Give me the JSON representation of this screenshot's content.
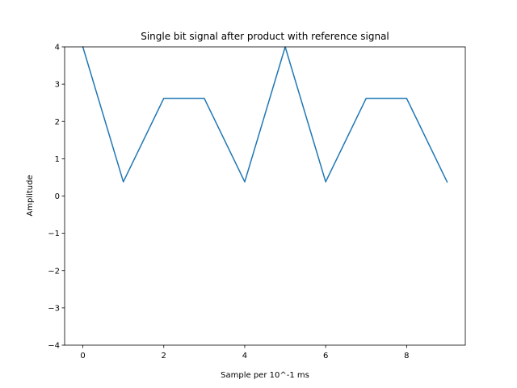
{
  "chart_data": {
    "type": "line",
    "title": "Single bit signal after product with reference signal",
    "xlabel": "Sample per 10^-1 ms",
    "ylabel": "Amplitude",
    "xlim": [
      -0.45,
      9.45
    ],
    "ylim": [
      -4,
      4
    ],
    "x_ticks": [
      0,
      2,
      4,
      6,
      8
    ],
    "x_tick_labels": [
      "0",
      "2",
      "4",
      "6",
      "8"
    ],
    "y_ticks": [
      -4,
      -3,
      -2,
      -1,
      0,
      1,
      2,
      3,
      4
    ],
    "y_tick_labels": [
      "−4",
      "−3",
      "−2",
      "−1",
      "0",
      "1",
      "2",
      "3",
      "4"
    ],
    "grid": false,
    "series": [
      {
        "color": "#1f77b4",
        "x": [
          0,
          1,
          2,
          3,
          4,
          5,
          6,
          7,
          8,
          9
        ],
        "y": [
          4.0,
          0.38,
          2.62,
          2.62,
          0.38,
          4.0,
          0.38,
          2.62,
          2.62,
          0.38
        ]
      }
    ]
  }
}
